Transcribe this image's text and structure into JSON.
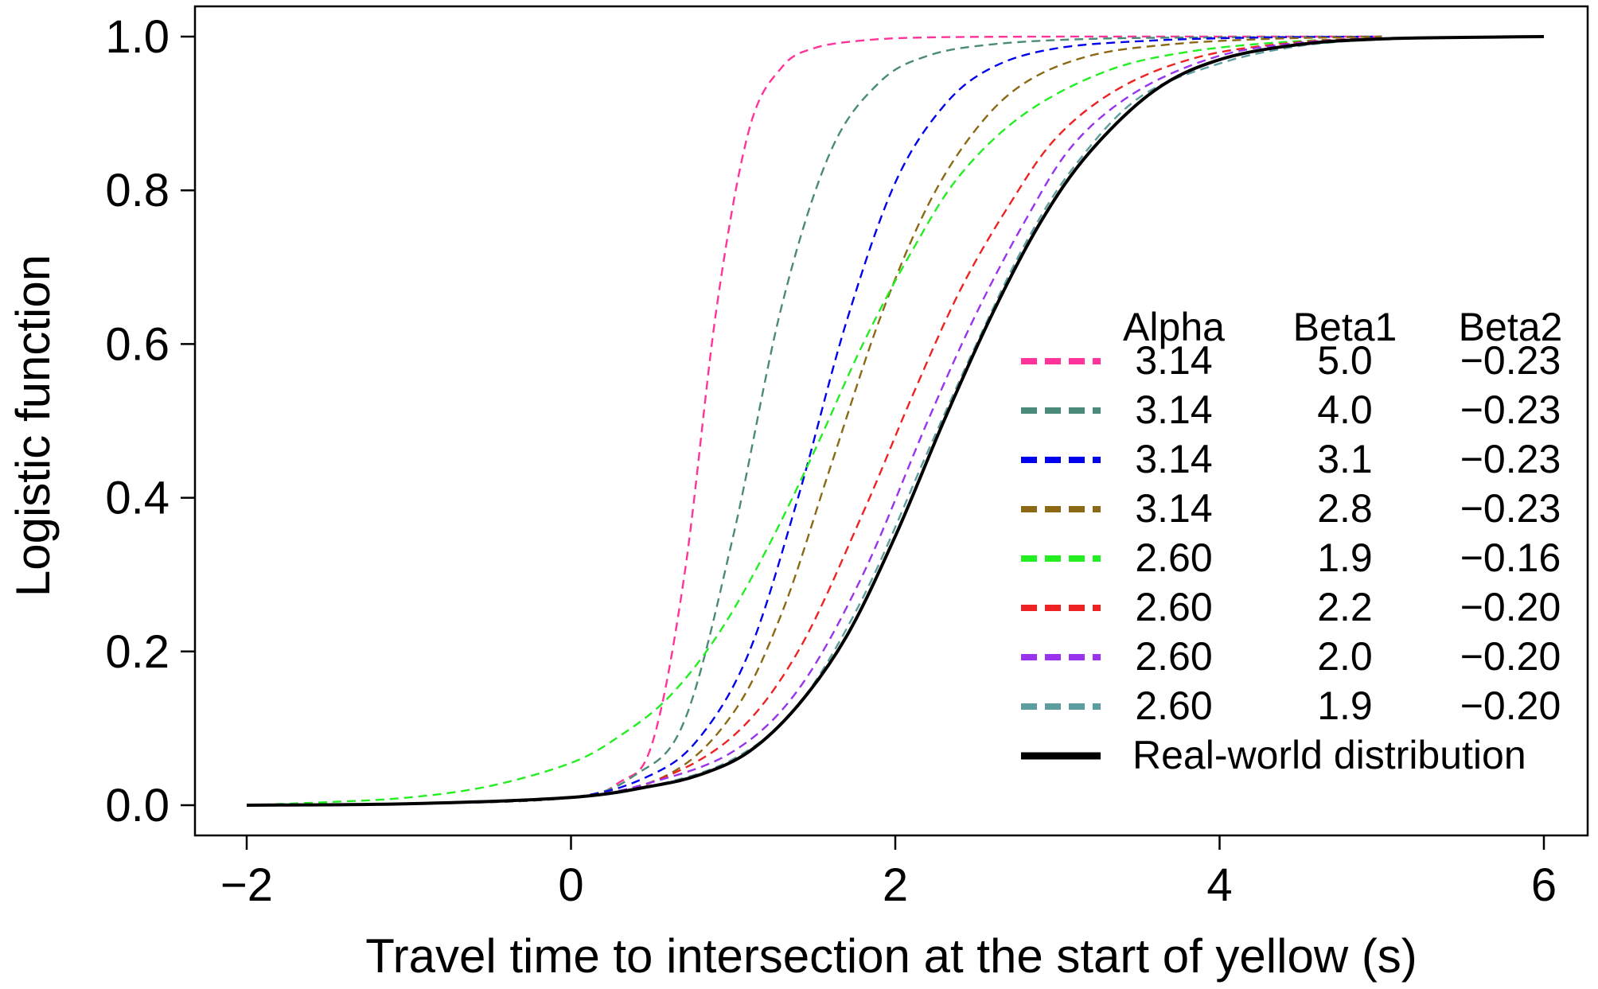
{
  "chart_data": {
    "type": "line",
    "title": "",
    "xlabel": "Travel time to intersection at the start of yellow (s)",
    "ylabel": "Logistic function",
    "xlim": [
      -2.3,
      6.3
    ],
    "ylim": [
      -0.04,
      1.04
    ],
    "xticks": [
      -2,
      0,
      2,
      4,
      6
    ],
    "xtick_labels": [
      "−2",
      "0",
      "2",
      "4",
      "6"
    ],
    "yticks": [
      0,
      0.2,
      0.4,
      0.6,
      0.8,
      1.0
    ],
    "ytick_labels": [
      "0.0",
      "0.2",
      "0.4",
      "0.6",
      "0.8",
      "1.0"
    ],
    "grid": false,
    "legend_position": "bottom-right",
    "legend_headers": [
      "Alpha",
      "Beta1",
      "Beta2"
    ],
    "series": [
      {
        "alpha": "3.14",
        "beta1": "5.0",
        "beta2": "−0.23",
        "color": "#ff3399",
        "style": "dashed",
        "x": [
          -2,
          -1,
          0,
          0.3,
          0.5,
          0.7,
          0.9,
          1.1,
          1.3,
          1.5,
          1.8,
          2.2,
          3,
          4,
          5
        ],
        "y": [
          0.0,
          0.002,
          0.01,
          0.03,
          0.08,
          0.3,
          0.65,
          0.88,
          0.96,
          0.985,
          0.995,
          0.999,
          1.0,
          1.0,
          1.0
        ]
      },
      {
        "alpha": "3.14",
        "beta1": "4.0",
        "beta2": "−0.23",
        "color": "#4a8a78",
        "style": "dashed",
        "x": [
          -2,
          -1,
          0,
          0.4,
          0.7,
          1.0,
          1.3,
          1.6,
          1.9,
          2.2,
          2.6,
          3.2,
          4,
          5
        ],
        "y": [
          0.0,
          0.002,
          0.01,
          0.04,
          0.11,
          0.35,
          0.65,
          0.85,
          0.94,
          0.975,
          0.99,
          0.997,
          0.999,
          1.0
        ]
      },
      {
        "alpha": "3.14",
        "beta1": "3.1",
        "beta2": "−0.23",
        "color": "#0000ee",
        "style": "dashed",
        "x": [
          -2,
          -1,
          0,
          0.5,
          0.8,
          1.1,
          1.4,
          1.7,
          2.0,
          2.3,
          2.6,
          3.0,
          3.6,
          4.3,
          5
        ],
        "y": [
          0.0,
          0.002,
          0.01,
          0.04,
          0.09,
          0.2,
          0.4,
          0.63,
          0.81,
          0.91,
          0.96,
          0.985,
          0.995,
          0.999,
          1.0
        ]
      },
      {
        "alpha": "3.14",
        "beta1": "2.8",
        "beta2": "−0.23",
        "color": "#8b6914",
        "style": "dashed",
        "x": [
          -2,
          -1,
          0,
          0.6,
          1.0,
          1.3,
          1.6,
          1.9,
          2.2,
          2.5,
          2.8,
          3.2,
          3.7,
          4.3,
          5
        ],
        "y": [
          0.0,
          0.002,
          0.01,
          0.04,
          0.12,
          0.25,
          0.44,
          0.63,
          0.78,
          0.88,
          0.94,
          0.975,
          0.99,
          0.997,
          1.0
        ]
      },
      {
        "alpha": "2.60",
        "beta1": "1.9",
        "beta2": "−0.16",
        "color": "#22ee22",
        "style": "dashed",
        "x": [
          -2,
          -1.5,
          -1,
          -0.5,
          0,
          0.3,
          0.6,
          0.9,
          1.2,
          1.5,
          1.8,
          2.1,
          2.4,
          2.8,
          3.3,
          3.8,
          4.4,
          5
        ],
        "y": [
          0.0,
          0.004,
          0.01,
          0.025,
          0.055,
          0.09,
          0.14,
          0.22,
          0.33,
          0.46,
          0.6,
          0.72,
          0.82,
          0.9,
          0.955,
          0.98,
          0.993,
          0.998
        ]
      },
      {
        "alpha": "2.60",
        "beta1": "2.2",
        "beta2": "−0.20",
        "color": "#ee2222",
        "style": "dashed",
        "x": [
          -2,
          -1,
          0,
          0.5,
          1.0,
          1.4,
          1.8,
          2.1,
          2.4,
          2.7,
          3.0,
          3.4,
          3.9,
          4.5,
          5
        ],
        "y": [
          0.0,
          0.002,
          0.01,
          0.03,
          0.09,
          0.2,
          0.38,
          0.53,
          0.67,
          0.78,
          0.87,
          0.935,
          0.975,
          0.993,
          0.998
        ]
      },
      {
        "alpha": "2.60",
        "beta1": "2.0",
        "beta2": "−0.20",
        "color": "#9933ee",
        "style": "dashed",
        "x": [
          -2,
          -1,
          0,
          0.5,
          1.0,
          1.4,
          1.8,
          2.2,
          2.5,
          2.8,
          3.1,
          3.5,
          4.0,
          4.5,
          5
        ],
        "y": [
          0.0,
          0.002,
          0.01,
          0.03,
          0.07,
          0.15,
          0.3,
          0.5,
          0.64,
          0.76,
          0.86,
          0.93,
          0.975,
          0.992,
          0.998
        ]
      },
      {
        "alpha": "2.60",
        "beta1": "1.9",
        "beta2": "−0.20",
        "color": "#5f9ea0",
        "style": "dashed",
        "x": [
          -2,
          -1,
          0,
          0.5,
          1.0,
          1.4,
          1.8,
          2.2,
          2.5,
          2.8,
          3.1,
          3.5,
          4.0,
          4.5,
          5
        ],
        "y": [
          0.0,
          0.002,
          0.01,
          0.025,
          0.06,
          0.13,
          0.27,
          0.46,
          0.6,
          0.73,
          0.83,
          0.92,
          0.965,
          0.988,
          0.997
        ]
      },
      {
        "label": "Real-world distribution",
        "color": "#000000",
        "style": "solid",
        "x": [
          -2,
          -1,
          0,
          0.5,
          0.8,
          1.1,
          1.4,
          1.7,
          2.0,
          2.3,
          2.6,
          2.9,
          3.2,
          3.6,
          4.0,
          4.5,
          5.0,
          5.5,
          6.0
        ],
        "y": [
          0.0,
          0.002,
          0.01,
          0.025,
          0.04,
          0.07,
          0.13,
          0.22,
          0.35,
          0.5,
          0.64,
          0.76,
          0.85,
          0.93,
          0.97,
          0.99,
          0.997,
          0.999,
          1.0
        ]
      }
    ]
  }
}
